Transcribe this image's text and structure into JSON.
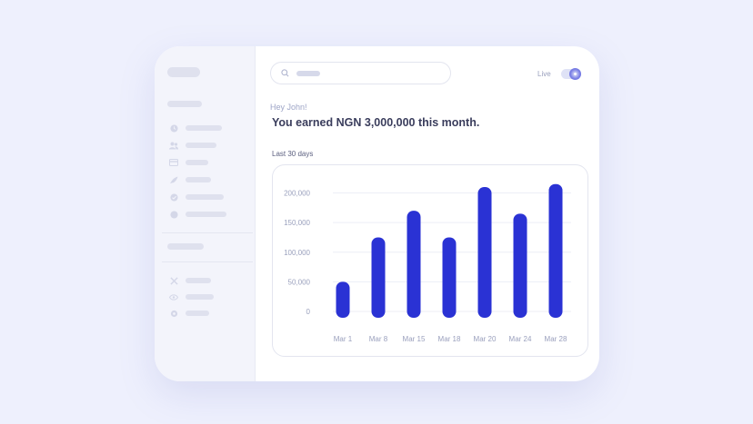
{
  "header": {
    "live_label": "Live",
    "live_on": true
  },
  "greeting": "Hey John!",
  "headline": "You earned NGN 3,000,000 this month.",
  "period_label": "Last 30 days",
  "colors": {
    "accent": "#2a32d4",
    "background": "#eef0fd"
  },
  "sidebar": {
    "items": [
      {
        "icon": "clock-icon"
      },
      {
        "icon": "users-icon"
      },
      {
        "icon": "card-icon"
      },
      {
        "icon": "rocket-icon"
      },
      {
        "icon": "check-circle-icon"
      },
      {
        "icon": "dot-icon"
      }
    ],
    "tools": [
      {
        "icon": "cross-icon"
      },
      {
        "icon": "eye-icon"
      },
      {
        "icon": "settings-icon"
      }
    ]
  },
  "chart_data": {
    "type": "bar",
    "categories": [
      "Mar 1",
      "Mar 8",
      "Mar 15",
      "Mar 18",
      "Mar 20",
      "Mar 24",
      "Mar 28"
    ],
    "values": [
      50000,
      125000,
      170000,
      125000,
      210000,
      165000,
      215000
    ],
    "ylim": [
      0,
      210000
    ],
    "yticks": [
      0,
      50000,
      100000,
      150000,
      200000
    ],
    "ytick_labels": [
      "0",
      "50,000",
      "100,000",
      "150,000",
      "200,000"
    ],
    "grid": true,
    "title": "",
    "xlabel": "",
    "ylabel": ""
  }
}
